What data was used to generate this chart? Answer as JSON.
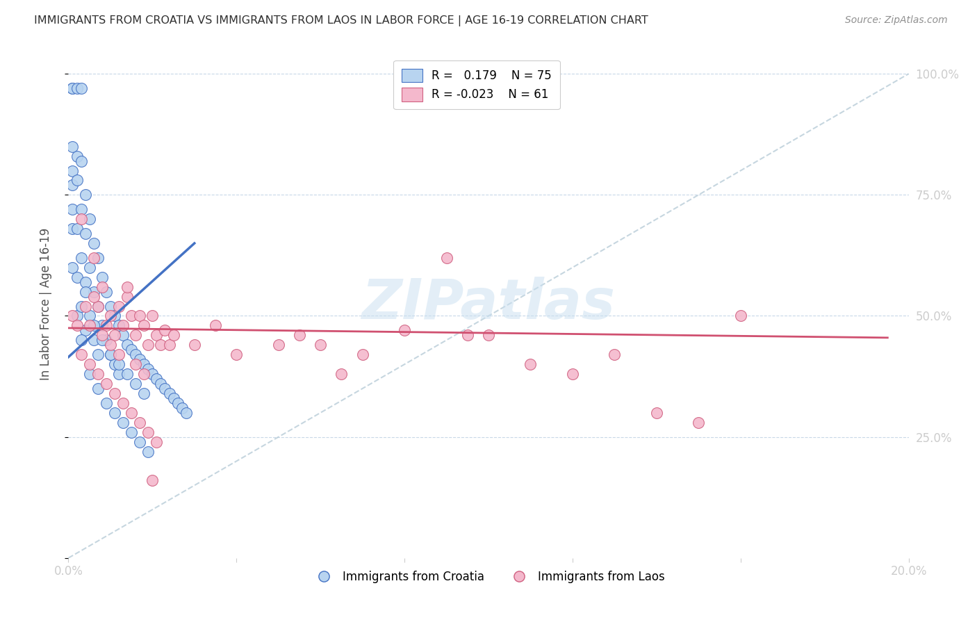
{
  "title": "IMMIGRANTS FROM CROATIA VS IMMIGRANTS FROM LAOS IN LABOR FORCE | AGE 16-19 CORRELATION CHART",
  "source": "Source: ZipAtlas.com",
  "ylabel": "In Labor Force | Age 16-19",
  "x_min": 0.0,
  "x_max": 0.2,
  "y_min": 0.0,
  "y_max": 1.05,
  "legend_r_croatia": "0.179",
  "legend_n_croatia": "75",
  "legend_r_laos": "-0.023",
  "legend_n_laos": "61",
  "color_croatia_fill": "#b8d4f0",
  "color_croatia_edge": "#4472c4",
  "color_laos_fill": "#f4b8cc",
  "color_laos_edge": "#d06080",
  "color_line_croatia": "#4472c4",
  "color_line_laos": "#d05070",
  "color_diagonal": "#b8ccd8",
  "color_axis_labels": "#4488cc",
  "color_title": "#303030",
  "color_source": "#909090",
  "color_grid": "#c8d8e8",
  "watermark": "ZIPatlas",
  "croatia_x": [
    0.001,
    0.001,
    0.001,
    0.001,
    0.001,
    0.001,
    0.001,
    0.001,
    0.002,
    0.002,
    0.002,
    0.002,
    0.002,
    0.002,
    0.003,
    0.003,
    0.003,
    0.003,
    0.003,
    0.004,
    0.004,
    0.004,
    0.004,
    0.005,
    0.005,
    0.005,
    0.006,
    0.006,
    0.006,
    0.007,
    0.007,
    0.007,
    0.008,
    0.008,
    0.009,
    0.009,
    0.01,
    0.01,
    0.011,
    0.011,
    0.012,
    0.012,
    0.013,
    0.014,
    0.015,
    0.016,
    0.017,
    0.018,
    0.019,
    0.02,
    0.021,
    0.022,
    0.023,
    0.024,
    0.025,
    0.026,
    0.027,
    0.028,
    0.003,
    0.004,
    0.005,
    0.006,
    0.007,
    0.008,
    0.009,
    0.01,
    0.011,
    0.012,
    0.013,
    0.014,
    0.015,
    0.016,
    0.017,
    0.018,
    0.019
  ],
  "croatia_y": [
    0.97,
    0.97,
    0.85,
    0.8,
    0.77,
    0.72,
    0.68,
    0.6,
    0.97,
    0.83,
    0.78,
    0.68,
    0.58,
    0.5,
    0.97,
    0.82,
    0.72,
    0.62,
    0.52,
    0.75,
    0.67,
    0.57,
    0.47,
    0.7,
    0.6,
    0.5,
    0.65,
    0.55,
    0.45,
    0.62,
    0.52,
    0.42,
    0.58,
    0.48,
    0.55,
    0.45,
    0.52,
    0.42,
    0.5,
    0.4,
    0.48,
    0.38,
    0.46,
    0.44,
    0.43,
    0.42,
    0.41,
    0.4,
    0.39,
    0.38,
    0.37,
    0.36,
    0.35,
    0.34,
    0.33,
    0.32,
    0.31,
    0.3,
    0.45,
    0.55,
    0.38,
    0.48,
    0.35,
    0.45,
    0.32,
    0.42,
    0.3,
    0.4,
    0.28,
    0.38,
    0.26,
    0.36,
    0.24,
    0.34,
    0.22
  ],
  "laos_x": [
    0.001,
    0.002,
    0.003,
    0.004,
    0.005,
    0.006,
    0.007,
    0.008,
    0.009,
    0.01,
    0.011,
    0.012,
    0.013,
    0.014,
    0.015,
    0.016,
    0.017,
    0.018,
    0.019,
    0.02,
    0.021,
    0.022,
    0.023,
    0.024,
    0.025,
    0.03,
    0.035,
    0.04,
    0.05,
    0.055,
    0.06,
    0.065,
    0.07,
    0.08,
    0.09,
    0.095,
    0.1,
    0.11,
    0.12,
    0.13,
    0.14,
    0.15,
    0.16,
    0.003,
    0.005,
    0.007,
    0.009,
    0.011,
    0.013,
    0.015,
    0.017,
    0.019,
    0.021,
    0.006,
    0.008,
    0.01,
    0.012,
    0.014,
    0.016,
    0.018,
    0.02
  ],
  "laos_y": [
    0.5,
    0.48,
    0.7,
    0.52,
    0.48,
    0.62,
    0.52,
    0.56,
    0.48,
    0.5,
    0.46,
    0.52,
    0.48,
    0.54,
    0.5,
    0.46,
    0.5,
    0.48,
    0.44,
    0.5,
    0.46,
    0.44,
    0.47,
    0.44,
    0.46,
    0.44,
    0.48,
    0.42,
    0.44,
    0.46,
    0.44,
    0.38,
    0.42,
    0.47,
    0.62,
    0.46,
    0.46,
    0.4,
    0.38,
    0.42,
    0.3,
    0.28,
    0.5,
    0.42,
    0.4,
    0.38,
    0.36,
    0.34,
    0.32,
    0.3,
    0.28,
    0.26,
    0.24,
    0.54,
    0.46,
    0.44,
    0.42,
    0.56,
    0.4,
    0.38,
    0.16
  ],
  "cr_line_x": [
    0.0,
    0.03
  ],
  "cr_line_y": [
    0.415,
    0.65
  ],
  "la_line_x": [
    0.0,
    0.195
  ],
  "la_line_y": [
    0.475,
    0.455
  ]
}
